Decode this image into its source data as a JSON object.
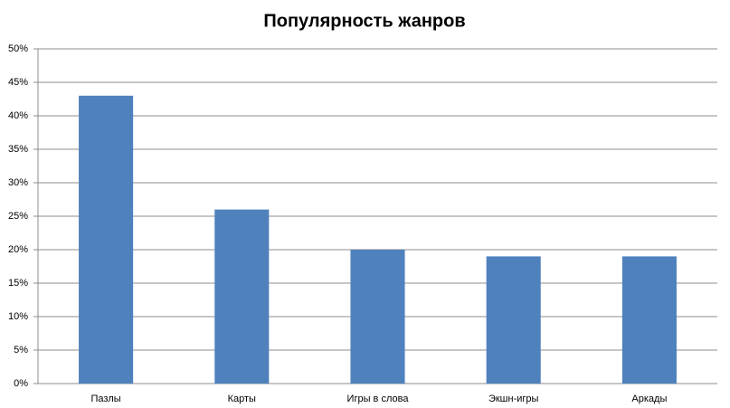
{
  "chart_data": {
    "type": "bar",
    "title": "Популярность жанров",
    "categories": [
      "Пазлы",
      "Карты",
      "Игры в слова",
      "Экшн-игры",
      "Аркады"
    ],
    "values": [
      43,
      26,
      20,
      19,
      19
    ],
    "color": "#4f81bd",
    "ylim": [
      0,
      50
    ],
    "yticks": [
      {
        "value": 0,
        "label": "0%"
      },
      {
        "value": 5,
        "label": "5%"
      },
      {
        "value": 10,
        "label": "10%"
      },
      {
        "value": 15,
        "label": "15%"
      },
      {
        "value": 20,
        "label": "20%"
      },
      {
        "value": 25,
        "label": "25%"
      },
      {
        "value": 30,
        "label": "30%"
      },
      {
        "value": 35,
        "label": "35%"
      },
      {
        "value": 40,
        "label": "40%"
      },
      {
        "value": 45,
        "label": "45%"
      },
      {
        "value": 50,
        "label": "50%"
      }
    ],
    "grid": true
  }
}
